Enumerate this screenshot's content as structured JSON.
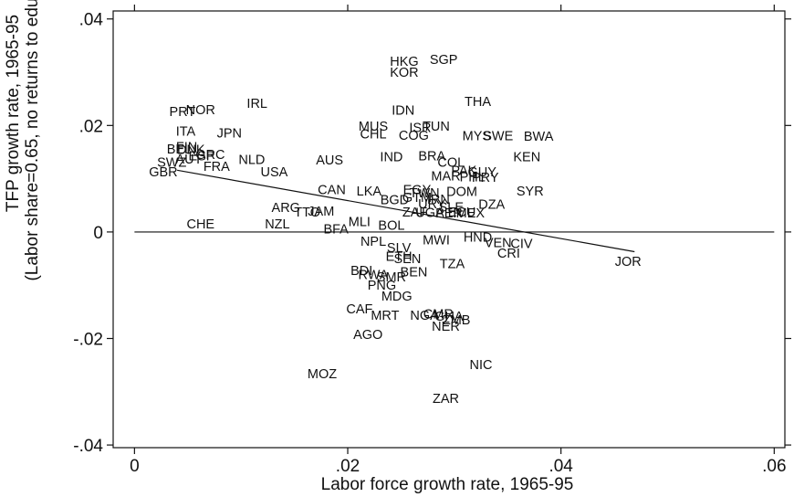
{
  "chart_data": {
    "type": "scatter",
    "xlabel": "Labor force growth rate, 1965-95",
    "ylabel": [
      "TFP growth rate, 1965-95",
      "(Labor share=0.65, no returns to education)"
    ],
    "xlim": [
      -0.002,
      0.061
    ],
    "ylim": [
      -0.0405,
      0.0415
    ],
    "x_ticks": [
      0,
      0.02,
      0.04,
      0.06
    ],
    "x_tick_labels": [
      "0",
      ".02",
      ".04",
      ".06"
    ],
    "y_ticks": [
      0.04,
      0.02,
      0,
      -0.02,
      -0.04
    ],
    "y_tick_labels": [
      ".04",
      ".02",
      "0",
      "-.02",
      "-.04"
    ],
    "grid": false,
    "zero_line": 0,
    "fit_line": [
      [
        0.004,
        0.0116
      ],
      [
        0.0469,
        -0.0037
      ]
    ],
    "points": [
      {
        "label": "HKG",
        "x": 0.0253,
        "y": 0.0319
      },
      {
        "label": "SGP",
        "x": 0.029,
        "y": 0.0322
      },
      {
        "label": "KOR",
        "x": 0.0253,
        "y": 0.0298
      },
      {
        "label": "THA",
        "x": 0.0322,
        "y": 0.0243
      },
      {
        "label": "IRL",
        "x": 0.0115,
        "y": 0.024
      },
      {
        "label": "NOR",
        "x": 0.0062,
        "y": 0.0228
      },
      {
        "label": "PRT",
        "x": 0.0045,
        "y": 0.0224
      },
      {
        "label": "IDN",
        "x": 0.0252,
        "y": 0.0227
      },
      {
        "label": "MUS",
        "x": 0.0224,
        "y": 0.0197
      },
      {
        "label": "ISR",
        "x": 0.0268,
        "y": 0.0194
      },
      {
        "label": "TUN",
        "x": 0.0283,
        "y": 0.0197
      },
      {
        "label": "ITA",
        "x": 0.0048,
        "y": 0.0187
      },
      {
        "label": "JPN",
        "x": 0.0089,
        "y": 0.0184
      },
      {
        "label": "CHL",
        "x": 0.0224,
        "y": 0.0182
      },
      {
        "label": "COG",
        "x": 0.0262,
        "y": 0.018
      },
      {
        "label": "MYS",
        "x": 0.0321,
        "y": 0.0179
      },
      {
        "label": "SWE",
        "x": 0.0341,
        "y": 0.0179
      },
      {
        "label": "BWA",
        "x": 0.0379,
        "y": 0.0178
      },
      {
        "label": "FIN",
        "x": 0.0049,
        "y": 0.0158
      },
      {
        "label": "BEL",
        "x": 0.0042,
        "y": 0.0154
      },
      {
        "label": "DNK",
        "x": 0.0053,
        "y": 0.0153
      },
      {
        "label": "GRC",
        "x": 0.0071,
        "y": 0.0144
      },
      {
        "label": "ESP",
        "x": 0.0063,
        "y": 0.0141
      },
      {
        "label": "AUT",
        "x": 0.0051,
        "y": 0.0135
      },
      {
        "label": "NLD",
        "x": 0.011,
        "y": 0.0134
      },
      {
        "label": "FRA",
        "x": 0.0077,
        "y": 0.0121
      },
      {
        "label": "SWZ",
        "x": 0.0035,
        "y": 0.0129
      },
      {
        "label": "GBR",
        "x": 0.0027,
        "y": 0.0111
      },
      {
        "label": "USA",
        "x": 0.0131,
        "y": 0.0111
      },
      {
        "label": "AUS",
        "x": 0.0183,
        "y": 0.0133
      },
      {
        "label": "IND",
        "x": 0.0241,
        "y": 0.0139
      },
      {
        "label": "BRA",
        "x": 0.0279,
        "y": 0.0141
      },
      {
        "label": "KEN",
        "x": 0.0368,
        "y": 0.0139
      },
      {
        "label": "COL",
        "x": 0.0297,
        "y": 0.0129
      },
      {
        "label": "PAK",
        "x": 0.0309,
        "y": 0.0114
      },
      {
        "label": "GUY",
        "x": 0.0326,
        "y": 0.0111
      },
      {
        "label": "MAR",
        "x": 0.0292,
        "y": 0.0103
      },
      {
        "label": "PHL",
        "x": 0.0317,
        "y": 0.0102
      },
      {
        "label": "PRY",
        "x": 0.0329,
        "y": 0.0101
      },
      {
        "label": "SYR",
        "x": 0.0371,
        "y": 0.0075
      },
      {
        "label": "CAN",
        "x": 0.0185,
        "y": 0.0078
      },
      {
        "label": "LKA",
        "x": 0.022,
        "y": 0.0075
      },
      {
        "label": "EGY",
        "x": 0.0265,
        "y": 0.0078
      },
      {
        "label": "TWN",
        "x": 0.0272,
        "y": 0.0072
      },
      {
        "label": "DOM",
        "x": 0.0307,
        "y": 0.0074
      },
      {
        "label": "BGD",
        "x": 0.0244,
        "y": 0.0059
      },
      {
        "label": "GTM",
        "x": 0.0265,
        "y": 0.0063
      },
      {
        "label": "IRN",
        "x": 0.0285,
        "y": 0.006
      },
      {
        "label": "DZA",
        "x": 0.0335,
        "y": 0.005
      },
      {
        "label": "URY",
        "x": 0.0279,
        "y": 0.0051
      },
      {
        "label": "SLE",
        "x": 0.0297,
        "y": 0.0045
      },
      {
        "label": "ZAF",
        "x": 0.0263,
        "y": 0.0036
      },
      {
        "label": "UGA",
        "x": 0.0277,
        "y": 0.0035
      },
      {
        "label": "PER",
        "x": 0.0295,
        "y": 0.0034
      },
      {
        "label": "ECU",
        "x": 0.0307,
        "y": 0.0036
      },
      {
        "label": "MEX",
        "x": 0.0315,
        "y": 0.0034
      },
      {
        "label": "ARG",
        "x": 0.0142,
        "y": 0.0044
      },
      {
        "label": "TTO",
        "x": 0.0162,
        "y": 0.0036
      },
      {
        "label": "JAM",
        "x": 0.0175,
        "y": 0.0037
      },
      {
        "label": "CHE",
        "x": 0.0062,
        "y": 0.0013
      },
      {
        "label": "NZL",
        "x": 0.0134,
        "y": 0.0013
      },
      {
        "label": "MLI",
        "x": 0.0211,
        "y": 0.0018
      },
      {
        "label": "BOL",
        "x": 0.0241,
        "y": 0.0011
      },
      {
        "label": "BFA",
        "x": 0.0189,
        "y": 0.0004
      },
      {
        "label": "HND",
        "x": 0.0322,
        "y": -0.0012
      },
      {
        "label": "NPL",
        "x": 0.0224,
        "y": -0.0019
      },
      {
        "label": "MWI",
        "x": 0.0283,
        "y": -0.0017
      },
      {
        "label": "VEN",
        "x": 0.0341,
        "y": -0.0022
      },
      {
        "label": "CIV",
        "x": 0.0363,
        "y": -0.0024
      },
      {
        "label": "SLV",
        "x": 0.0248,
        "y": -0.0031
      },
      {
        "label": "CRI",
        "x": 0.0351,
        "y": -0.0042
      },
      {
        "label": "ETH",
        "x": 0.0248,
        "y": -0.0048
      },
      {
        "label": "SEN",
        "x": 0.0256,
        "y": -0.0052
      },
      {
        "label": "TZA",
        "x": 0.0298,
        "y": -0.0061
      },
      {
        "label": "JOR",
        "x": 0.0463,
        "y": -0.0057
      },
      {
        "label": "BDI",
        "x": 0.0213,
        "y": -0.0074
      },
      {
        "label": "RWA",
        "x": 0.0224,
        "y": -0.0082
      },
      {
        "label": "SMR",
        "x": 0.0241,
        "y": -0.0086
      },
      {
        "label": "BEN",
        "x": 0.0262,
        "y": -0.0077
      },
      {
        "label": "PNG",
        "x": 0.0232,
        "y": -0.0102
      },
      {
        "label": "MDG",
        "x": 0.0246,
        "y": -0.0122
      },
      {
        "label": "CAF",
        "x": 0.0211,
        "y": -0.0146
      },
      {
        "label": "MRT",
        "x": 0.0235,
        "y": -0.0158
      },
      {
        "label": "NGA",
        "x": 0.0272,
        "y": -0.0158
      },
      {
        "label": "CMR",
        "x": 0.0285,
        "y": -0.0156
      },
      {
        "label": "GHA",
        "x": 0.0295,
        "y": -0.016
      },
      {
        "label": "ZMB",
        "x": 0.0302,
        "y": -0.0167
      },
      {
        "label": "NER",
        "x": 0.0292,
        "y": -0.0179
      },
      {
        "label": "AGO",
        "x": 0.0219,
        "y": -0.0194
      },
      {
        "label": "NIC",
        "x": 0.0325,
        "y": -0.0251
      },
      {
        "label": "MOZ",
        "x": 0.0176,
        "y": -0.0268
      },
      {
        "label": "ZAR",
        "x": 0.0292,
        "y": -0.0314
      }
    ]
  }
}
